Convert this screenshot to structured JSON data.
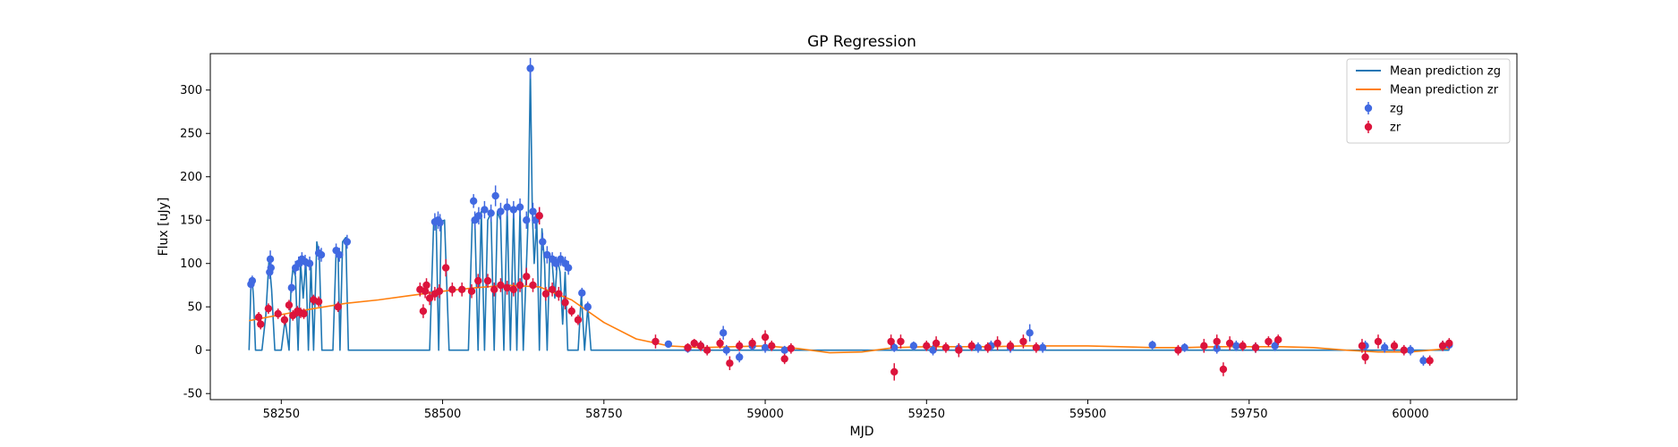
{
  "chart_data": {
    "type": "scatter",
    "title": "GP Regression",
    "xlabel": "MJD",
    "ylabel": "Flux [uJy]",
    "xlim": [
      58140,
      60165
    ],
    "ylim": [
      -57,
      342
    ],
    "xticks": [
      58250,
      58500,
      58750,
      59000,
      59250,
      59500,
      59750,
      60000
    ],
    "yticks": [
      -50,
      0,
      50,
      100,
      150,
      200,
      250,
      300
    ],
    "grid": false,
    "legend_position": "top-right",
    "legend": [
      {
        "label": "Mean prediction zg",
        "kind": "line",
        "color": "#1f77b4"
      },
      {
        "label": "Mean prediction zr",
        "kind": "line",
        "color": "#ff7f0e"
      },
      {
        "label": "zg",
        "kind": "errorbar",
        "color": "#4169e1"
      },
      {
        "label": "zr",
        "kind": "errorbar",
        "color": "#dc143c"
      }
    ],
    "lines": [
      {
        "name": "Mean prediction zg",
        "color": "#1f77b4",
        "x": [
          58200,
          58203,
          58205,
          58207,
          58210,
          58220,
          58226,
          58231,
          58235,
          58240,
          58250,
          58256,
          58262,
          58265,
          58268,
          58272,
          58276,
          58280,
          58284,
          58288,
          58292,
          58296,
          58300,
          58305,
          58309,
          58313,
          58318,
          58330,
          58335,
          58338,
          58341,
          58345,
          58350,
          58354,
          58360,
          58460,
          58480,
          58486,
          58490,
          58494,
          58498,
          58503,
          58510,
          58525,
          58540,
          58546,
          58550,
          58555,
          58560,
          58565,
          58570,
          58575,
          58580,
          58585,
          58590,
          58595,
          58600,
          58605,
          58610,
          58615,
          58620,
          58625,
          58630,
          58633,
          58636,
          58639,
          58642,
          58646,
          58650,
          58654,
          58658,
          58662,
          58666,
          58670,
          58674,
          58678,
          58682,
          58686,
          58690,
          58694,
          58698,
          58702,
          58706,
          58710,
          58715,
          58720,
          58725,
          58730,
          58740,
          58800,
          58900,
          59000,
          59500,
          60000,
          60060
        ],
        "y": [
          0,
          75,
          80,
          60,
          0,
          0,
          40,
          105,
          70,
          0,
          0,
          35,
          0,
          70,
          95,
          85,
          0,
          100,
          60,
          105,
          0,
          100,
          0,
          125,
          110,
          0,
          0,
          0,
          115,
          110,
          0,
          125,
          130,
          0,
          0,
          0,
          0,
          145,
          150,
          0,
          148,
          150,
          0,
          0,
          0,
          150,
          150,
          0,
          160,
          0,
          150,
          158,
          0,
          160,
          150,
          0,
          165,
          0,
          162,
          0,
          165,
          0,
          100,
          160,
          325,
          160,
          100,
          150,
          0,
          140,
          100,
          0,
          110,
          100,
          60,
          105,
          90,
          30,
          90,
          0,
          0,
          0,
          0,
          0,
          65,
          0,
          50,
          0,
          0,
          0,
          0,
          0,
          0,
          0,
          0
        ]
      },
      {
        "name": "Mean prediction zr",
        "color": "#ff7f0e",
        "x": [
          58200,
          58250,
          58300,
          58350,
          58400,
          58450,
          58500,
          58550,
          58600,
          58650,
          58700,
          58750,
          58800,
          58850,
          58900,
          58950,
          59000,
          59050,
          59100,
          59150,
          59200,
          59250,
          59300,
          59350,
          59400,
          59450,
          59500,
          59550,
          59600,
          59650,
          59700,
          59750,
          59800,
          59850,
          59900,
          59950,
          60000,
          60060
        ],
        "y": [
          34,
          41,
          48,
          54,
          58,
          63,
          68,
          72,
          75,
          73,
          58,
          32,
          13,
          5,
          3,
          4,
          5,
          2,
          -3,
          -2,
          3,
          4,
          4,
          4,
          5,
          5,
          5,
          4,
          3,
          3,
          4,
          4,
          4,
          3,
          0,
          -2,
          -2,
          2
        ]
      }
    ],
    "series": [
      {
        "name": "zg",
        "color": "#4169e1",
        "x": [
          58203,
          58205,
          58232,
          58233,
          58234,
          58266,
          58272,
          58277,
          58282,
          58287,
          58294,
          58308,
          58312,
          58335,
          58340,
          58352,
          58488,
          58493,
          58496,
          58548,
          58550,
          58556,
          58565,
          58575,
          58582,
          58590,
          58600,
          58610,
          58620,
          58630,
          58636,
          58640,
          58644,
          58650,
          58655,
          58662,
          58670,
          58676,
          58683,
          58690,
          58695,
          58716,
          58725,
          58850,
          58880,
          58900,
          58935,
          58940,
          58960,
          58980,
          59000,
          59030,
          59200,
          59230,
          59260,
          59300,
          59330,
          59350,
          59380,
          59410,
          59430,
          59600,
          59650,
          59700,
          59730,
          59760,
          59790,
          59930,
          59960,
          60000,
          60020,
          60050,
          60060
        ],
        "y": [
          76,
          80,
          90,
          105,
          95,
          72,
          95,
          100,
          105,
          102,
          100,
          112,
          110,
          115,
          110,
          125,
          148,
          150,
          147,
          172,
          150,
          155,
          162,
          158,
          178,
          160,
          165,
          162,
          165,
          150,
          325,
          160,
          150,
          155,
          125,
          110,
          105,
          100,
          105,
          100,
          95,
          66,
          50,
          7,
          2,
          5,
          20,
          0,
          -8,
          5,
          3,
          0,
          3,
          5,
          0,
          2,
          3,
          5,
          3,
          20,
          3,
          6,
          3,
          2,
          5,
          3,
          5,
          5,
          3,
          0,
          -12,
          5,
          6
        ],
        "err": [
          6,
          6,
          8,
          10,
          8,
          6,
          8,
          8,
          8,
          8,
          8,
          8,
          8,
          8,
          8,
          8,
          10,
          10,
          10,
          8,
          10,
          10,
          10,
          10,
          12,
          10,
          10,
          10,
          10,
          10,
          12,
          10,
          10,
          10,
          10,
          10,
          8,
          8,
          8,
          8,
          8,
          6,
          6,
          4,
          5,
          5,
          8,
          6,
          6,
          5,
          6,
          5,
          5,
          5,
          6,
          6,
          6,
          6,
          6,
          10,
          6,
          5,
          5,
          6,
          6,
          6,
          6,
          6,
          6,
          6,
          6,
          6,
          6
        ]
      },
      {
        "name": "zr",
        "color": "#dc143c",
        "x": [
          58215,
          58218,
          58230,
          58245,
          58255,
          58262,
          58268,
          58275,
          58280,
          58285,
          58300,
          58308,
          58338,
          58465,
          58470,
          58473,
          58475,
          58480,
          58488,
          58495,
          58505,
          58515,
          58530,
          58545,
          58555,
          58570,
          58580,
          58590,
          58600,
          58610,
          58620,
          58630,
          58640,
          58650,
          58660,
          58670,
          58680,
          58690,
          58700,
          58710,
          58830,
          58880,
          58890,
          58900,
          58910,
          58930,
          58945,
          58960,
          58980,
          59000,
          59010,
          59030,
          59040,
          59195,
          59200,
          59210,
          59250,
          59265,
          59280,
          59300,
          59320,
          59345,
          59360,
          59380,
          59400,
          59420,
          59640,
          59680,
          59700,
          59710,
          59720,
          59740,
          59760,
          59780,
          59795,
          59925,
          59930,
          59950,
          59975,
          59990,
          60030,
          60050,
          60060
        ],
        "y": [
          38,
          30,
          48,
          42,
          35,
          52,
          40,
          45,
          43,
          42,
          58,
          56,
          50,
          70,
          45,
          68,
          75,
          60,
          65,
          68,
          95,
          70,
          70,
          68,
          80,
          80,
          70,
          75,
          72,
          70,
          75,
          85,
          75,
          155,
          65,
          70,
          65,
          55,
          45,
          35,
          10,
          3,
          8,
          5,
          0,
          8,
          -15,
          5,
          8,
          15,
          5,
          -10,
          2,
          10,
          -25,
          10,
          5,
          8,
          3,
          0,
          5,
          3,
          8,
          5,
          10,
          3,
          0,
          5,
          10,
          -22,
          8,
          5,
          3,
          10,
          12,
          5,
          -8,
          10,
          5,
          0,
          -12,
          5,
          8
        ],
        "err": [
          6,
          6,
          6,
          6,
          6,
          6,
          6,
          6,
          6,
          6,
          6,
          6,
          6,
          8,
          8,
          8,
          8,
          8,
          8,
          8,
          10,
          8,
          8,
          8,
          8,
          8,
          8,
          8,
          8,
          8,
          8,
          10,
          8,
          10,
          8,
          8,
          8,
          8,
          6,
          6,
          8,
          5,
          5,
          6,
          6,
          6,
          8,
          6,
          6,
          8,
          6,
          6,
          6,
          8,
          10,
          8,
          6,
          8,
          6,
          8,
          6,
          6,
          8,
          6,
          8,
          6,
          6,
          8,
          8,
          8,
          8,
          6,
          6,
          6,
          6,
          8,
          8,
          8,
          6,
          6,
          6,
          6,
          6
        ]
      }
    ]
  }
}
